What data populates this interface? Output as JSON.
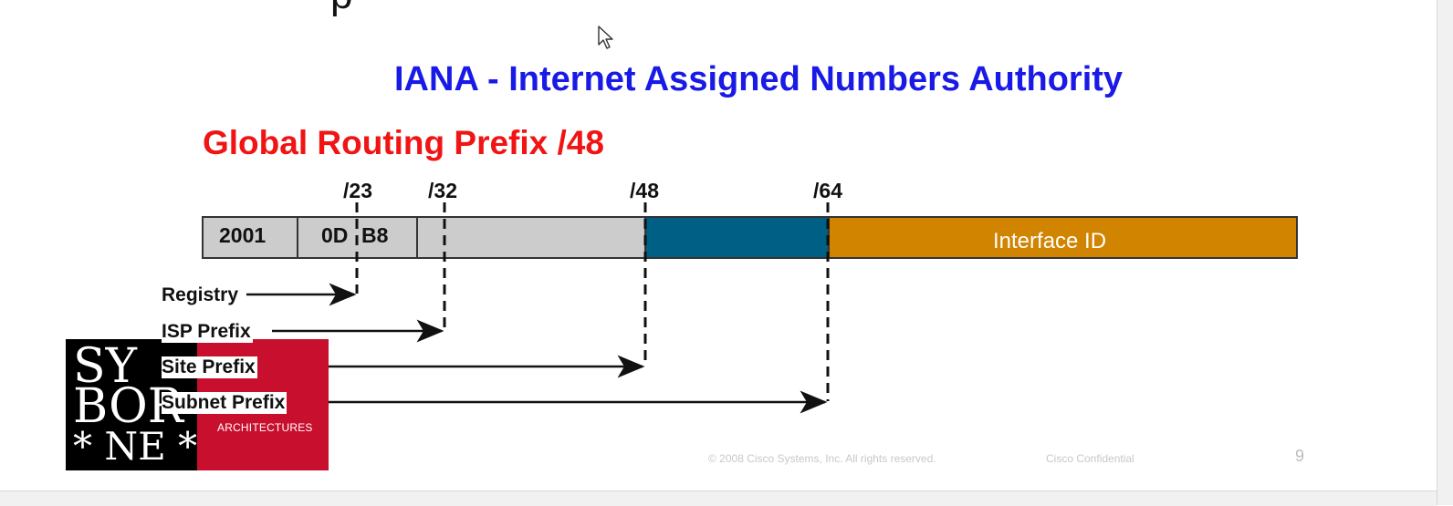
{
  "slide": {
    "title": "IANA - Internet Assigned Numbers Authority",
    "subtitle": "Global Routing Prefix /48"
  },
  "diagram": {
    "prefix_markers": [
      "/23",
      "/32",
      "/48",
      "/64"
    ],
    "address_fields": [
      "2001",
      "0D",
      "B8"
    ],
    "interface_label": "Interface ID",
    "prefix_rows": [
      {
        "label": "Registry",
        "ends_at": "/23"
      },
      {
        "label": "ISP Prefix",
        "ends_at": "/32"
      },
      {
        "label": "Site Prefix",
        "ends_at": "/48"
      },
      {
        "label": "Subnet Prefix",
        "ends_at": "/64"
      }
    ],
    "colors": {
      "title": "#1a1ae6",
      "subtitle": "#f01414",
      "prefix_fill": "#cccccc",
      "subnet_fill": "#005f85",
      "interface_fill": "#d08400"
    }
  },
  "logo": {
    "letters_line1": "SY",
    "letters_line2": "BOR",
    "letters_line3": "* NE *",
    "tagline": "ARCHITECTURES"
  },
  "footer": {
    "copyright": "© 2008 Cisco Systems, Inc. All rights reserved.",
    "confidential": "Cisco Confidential",
    "page_number": "9"
  }
}
